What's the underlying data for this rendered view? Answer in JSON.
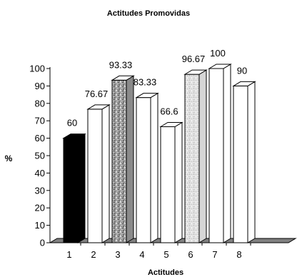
{
  "chart_data": {
    "type": "bar",
    "title": "Actitudes Promovidas",
    "xlabel": "Actitudes",
    "ylabel": "%",
    "categories": [
      "1",
      "2",
      "3",
      "4",
      "5",
      "6",
      "7",
      "8"
    ],
    "values": [
      60,
      76.67,
      93.33,
      83.33,
      66.6,
      96.67,
      100,
      90
    ],
    "value_labels": [
      "60",
      "76.67",
      "93.33",
      "83.33",
      "66.6",
      "96.67",
      "100",
      "90"
    ],
    "ylim": [
      0,
      100
    ],
    "yticks": [
      "0",
      "10",
      "20",
      "30",
      "40",
      "50",
      "60",
      "70",
      "80",
      "90",
      "100"
    ],
    "style_3d": true,
    "grid": false,
    "legend": "none",
    "bar_fills": [
      "black",
      "white",
      "gray-texture",
      "white",
      "white",
      "light-texture",
      "white",
      "white"
    ],
    "colors": {
      "floor": "#808080",
      "bar_outline": "#000000",
      "black_bar": "#000000",
      "white_bar": "#ffffff"
    }
  }
}
